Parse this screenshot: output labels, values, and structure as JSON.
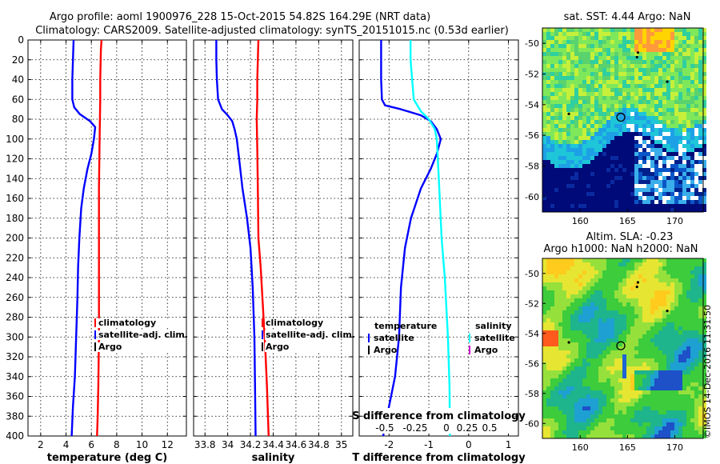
{
  "header": {
    "title_line1": "Argo profile: aoml 1900976_228 15-Oct-2015 54.82S 164.29E (NRT data)",
    "title_line2": "Climatology: CARS2009. Satellite-adjusted climatology: synTS_20151015.nc (0.53d earlier)"
  },
  "colors": {
    "climatology": "#ff0000",
    "satellite": "#0000ff",
    "argo": "#000000",
    "satellite_S": "#00ffff",
    "argo_S": "#cc00cc"
  },
  "chart_data": [
    {
      "type": "line",
      "id": "temperature",
      "xlabel": "temperature (deg C)",
      "ylabel": "",
      "xlim": [
        1,
        13.5
      ],
      "ylim": [
        400,
        0
      ],
      "xticks": [
        2,
        4,
        6,
        8,
        10,
        12
      ],
      "yticks": [
        0,
        20,
        40,
        60,
        80,
        100,
        120,
        140,
        160,
        180,
        200,
        220,
        240,
        260,
        280,
        300,
        320,
        340,
        360,
        380,
        400
      ],
      "legend": {
        "position": "bottom-right",
        "entries": [
          "climatology",
          "satellite-adj. clim.",
          "Argo"
        ]
      },
      "series": [
        {
          "name": "climatology",
          "color": "#ff0000",
          "points": [
            [
              6.8,
              0
            ],
            [
              6.75,
              10
            ],
            [
              6.7,
              40
            ],
            [
              6.7,
              60
            ],
            [
              6.65,
              100
            ],
            [
              6.6,
              150
            ],
            [
              6.6,
              200
            ],
            [
              6.6,
              260
            ],
            [
              6.6,
              300
            ],
            [
              6.55,
              350
            ],
            [
              6.5,
              380
            ],
            [
              6.45,
              400
            ]
          ]
        },
        {
          "name": "satellite-adj. clim.",
          "color": "#0000ff",
          "points": [
            [
              4.6,
              0
            ],
            [
              4.55,
              20
            ],
            [
              4.5,
              40
            ],
            [
              4.5,
              60
            ],
            [
              4.65,
              68
            ],
            [
              5.1,
              75
            ],
            [
              5.9,
              82
            ],
            [
              6.3,
              88
            ],
            [
              6.2,
              100
            ],
            [
              6.0,
              115
            ],
            [
              5.7,
              130
            ],
            [
              5.4,
              150
            ],
            [
              5.2,
              170
            ],
            [
              5.05,
              200
            ],
            [
              4.95,
              230
            ],
            [
              4.9,
              260
            ],
            [
              4.8,
              300
            ],
            [
              4.7,
              340
            ],
            [
              4.55,
              370
            ],
            [
              4.45,
              400
            ]
          ]
        },
        {
          "name": "Argo",
          "color": "#000000",
          "points": []
        }
      ]
    },
    {
      "type": "line",
      "id": "salinity",
      "xlabel": "salinity",
      "ylabel": "",
      "xlim": [
        33.7,
        35.1
      ],
      "ylim": [
        400,
        0
      ],
      "xticks": [
        33.8,
        34,
        34.2,
        34.4,
        34.6,
        34.8,
        35
      ],
      "xticklabels": [
        "33.8",
        "34",
        "34.2",
        "34.4",
        "34.6",
        "34.8",
        "35"
      ],
      "legend": {
        "position": "bottom-right",
        "entries": [
          "climatology",
          "satellite-adj. clim.",
          "Argo"
        ]
      },
      "series": [
        {
          "name": "climatology",
          "color": "#ff0000",
          "points": [
            [
              34.27,
              0
            ],
            [
              34.265,
              20
            ],
            [
              34.26,
              40
            ],
            [
              34.26,
              60
            ],
            [
              34.255,
              80
            ],
            [
              34.26,
              110
            ],
            [
              34.265,
              150
            ],
            [
              34.27,
              200
            ],
            [
              34.29,
              230
            ],
            [
              34.31,
              270
            ],
            [
              34.33,
              310
            ],
            [
              34.345,
              350
            ],
            [
              34.36,
              400
            ]
          ]
        },
        {
          "name": "satellite-adj. clim.",
          "color": "#0000ff",
          "points": [
            [
              33.9,
              0
            ],
            [
              33.9,
              20
            ],
            [
              33.905,
              40
            ],
            [
              33.915,
              60
            ],
            [
              33.95,
              70
            ],
            [
              34.0,
              76
            ],
            [
              34.04,
              82
            ],
            [
              34.06,
              90
            ],
            [
              34.08,
              100
            ],
            [
              34.1,
              120
            ],
            [
              34.13,
              150
            ],
            [
              34.17,
              180
            ],
            [
              34.2,
              210
            ],
            [
              34.22,
              250
            ],
            [
              34.235,
              300
            ],
            [
              34.24,
              350
            ],
            [
              34.245,
              400
            ]
          ]
        },
        {
          "name": "Argo",
          "color": "#000000",
          "points": []
        }
      ]
    },
    {
      "type": "line",
      "id": "difference",
      "xlabel": "T difference from climatology",
      "xlabel_top": "S difference from climatology",
      "ylabel": "",
      "xlim": [
        -2.75,
        1.25
      ],
      "ylim": [
        400,
        0
      ],
      "xticks": [
        -2,
        -1,
        0,
        1
      ],
      "xticklabels": [
        "-2",
        "-1",
        "0",
        "1"
      ],
      "top_ticklabels": [
        "-0.5",
        "-0.25",
        "0",
        "0.25",
        "0.5"
      ],
      "legend": {
        "position": "bottom",
        "temperature_title": "temperature",
        "salinity_title": "salinity",
        "temperature_entries": [
          "satellite",
          "Argo"
        ],
        "salinity_entries": [
          "satellite",
          "Argo"
        ]
      },
      "series": [
        {
          "name": "T satellite",
          "color": "#0000ff",
          "points": [
            [
              -2.2,
              0
            ],
            [
              -2.2,
              20
            ],
            [
              -2.2,
              40
            ],
            [
              -2.18,
              60
            ],
            [
              -2.1,
              66
            ],
            [
              -1.7,
              70
            ],
            [
              -1.2,
              76
            ],
            [
              -0.95,
              82
            ],
            [
              -0.8,
              90
            ],
            [
              -0.7,
              100
            ],
            [
              -0.8,
              115
            ],
            [
              -0.95,
              130
            ],
            [
              -1.2,
              150
            ],
            [
              -1.45,
              180
            ],
            [
              -1.6,
              210
            ],
            [
              -1.7,
              250
            ],
            [
              -1.75,
              300
            ],
            [
              -1.85,
              340
            ],
            [
              -2.0,
              370
            ],
            [
              -2.15,
              400
            ]
          ]
        },
        {
          "name": "S satellite",
          "color": "#00ffff",
          "points": [
            [
              -1.46,
              0
            ],
            [
              -1.46,
              20
            ],
            [
              -1.42,
              40
            ],
            [
              -1.38,
              60
            ],
            [
              -1.2,
              72
            ],
            [
              -1.0,
              80
            ],
            [
              -0.85,
              90
            ],
            [
              -0.8,
              100
            ],
            [
              -0.75,
              140
            ],
            [
              -0.68,
              200
            ],
            [
              -0.6,
              240
            ],
            [
              -0.52,
              300
            ],
            [
              -0.48,
              350
            ],
            [
              -0.47,
              400
            ]
          ]
        },
        {
          "name": "T Argo",
          "color": "#000000",
          "points": []
        },
        {
          "name": "S Argo",
          "color": "#cc00cc",
          "points": []
        }
      ]
    },
    {
      "type": "heatmap",
      "id": "sst_map",
      "title": "sat. SST: 4.44 Argo: NaN",
      "xlim": [
        156,
        173
      ],
      "ylim": [
        -61,
        -49
      ],
      "xticks": [
        160,
        165,
        170
      ],
      "yticks": [
        -50,
        -52,
        -54,
        -56,
        -58,
        -60
      ],
      "yticklabels": [
        "-50",
        "-52",
        "-54",
        "-56",
        "-58",
        "-60"
      ],
      "marker": {
        "lon": 164.29,
        "lat": -54.82
      }
    },
    {
      "type": "heatmap",
      "id": "sla_map",
      "title": "Altim. SLA: -0.23",
      "subtitle": "Argo h1000: NaN h2000: NaN",
      "xlim": [
        156,
        173
      ],
      "ylim": [
        -61,
        -49
      ],
      "xticks": [
        160,
        165,
        170
      ],
      "yticks": [
        -50,
        -52,
        -54,
        -56,
        -58,
        -60
      ],
      "yticklabels": [
        "-50",
        "-52",
        "-54",
        "-56",
        "-58",
        "-60"
      ],
      "marker": {
        "lon": 164.29,
        "lat": -54.82
      }
    }
  ],
  "watermark": "©IMOS 14-Dec-2016 11:31:50"
}
